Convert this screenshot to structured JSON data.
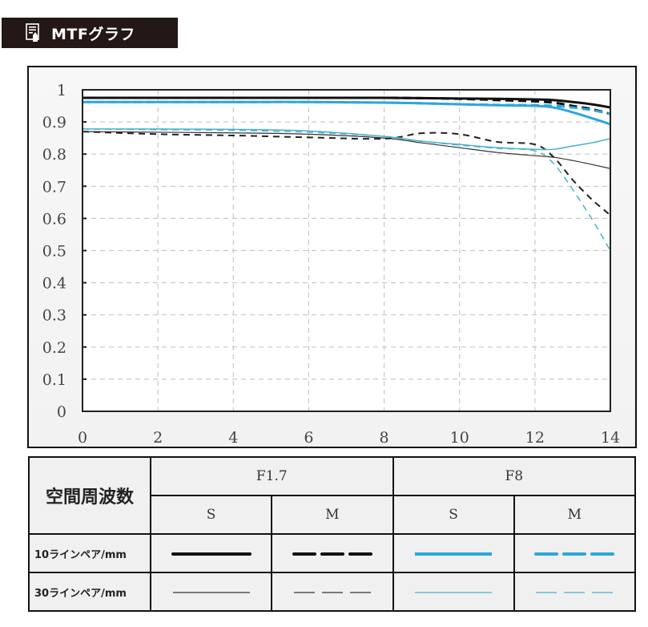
{
  "header": {
    "title": "MTFグラフ",
    "icon": "manual-page-pencil-icon"
  },
  "chart_data": {
    "type": "line",
    "title": "MTFグラフ",
    "xlabel": "",
    "ylabel": "",
    "xlim": [
      0,
      14
    ],
    "ylim": [
      0,
      1
    ],
    "x_ticks": [
      "0",
      "2",
      "4",
      "6",
      "8",
      "10",
      "12",
      "14"
    ],
    "y_ticks": [
      "0",
      "0.1",
      "0.2",
      "0.3",
      "0.4",
      "0.5",
      "0.6",
      "0.7",
      "0.8",
      "0.9",
      "1"
    ],
    "grid": true,
    "x": [
      0,
      2,
      4,
      6,
      8,
      9,
      10,
      11,
      12,
      12.5,
      13,
      13.5,
      14
    ],
    "series": [
      {
        "name": "10ラインペア/mm F1.7 S",
        "color": "#111111",
        "width": 3,
        "dash": "",
        "values": [
          0.975,
          0.975,
          0.975,
          0.975,
          0.975,
          0.974,
          0.973,
          0.972,
          0.97,
          0.968,
          0.962,
          0.955,
          0.945
        ]
      },
      {
        "name": "10ラインペア/mm F1.7 M",
        "color": "#111111",
        "width": 3,
        "dash": "10,6",
        "values": [
          0.975,
          0.975,
          0.975,
          0.975,
          0.975,
          0.974,
          0.972,
          0.968,
          0.964,
          0.96,
          0.95,
          0.94,
          0.925
        ]
      },
      {
        "name": "10ラインペア/mm F8 S",
        "color": "#2aa7dc",
        "width": 3,
        "dash": "",
        "values": [
          0.962,
          0.962,
          0.962,
          0.962,
          0.96,
          0.958,
          0.955,
          0.952,
          0.95,
          0.945,
          0.93,
          0.912,
          0.893
        ]
      },
      {
        "name": "10ラインペア/mm F8 M",
        "color": "#2aa7dc",
        "width": 3,
        "dash": "10,6",
        "values": [
          0.962,
          0.962,
          0.962,
          0.962,
          0.96,
          0.958,
          0.955,
          0.953,
          0.952,
          0.95,
          0.945,
          0.937,
          0.925
        ]
      },
      {
        "name": "30ラインペア/mm F1.7 S",
        "color": "#333333",
        "width": 1.2,
        "dash": "",
        "values": [
          0.87,
          0.868,
          0.866,
          0.862,
          0.85,
          0.835,
          0.82,
          0.805,
          0.795,
          0.79,
          0.78,
          0.768,
          0.755
        ]
      },
      {
        "name": "30ラインペア/mm F1.7 M",
        "color": "#222222",
        "width": 2,
        "dash": "8,6",
        "values": [
          0.87,
          0.862,
          0.858,
          0.852,
          0.848,
          0.865,
          0.862,
          0.838,
          0.83,
          0.79,
          0.72,
          0.66,
          0.61
        ]
      },
      {
        "name": "30ラインペア/mm F8 S",
        "color": "#4ab0d0",
        "width": 1.5,
        "dash": "",
        "values": [
          0.878,
          0.878,
          0.877,
          0.872,
          0.855,
          0.84,
          0.83,
          0.82,
          0.815,
          0.815,
          0.825,
          0.835,
          0.848
        ]
      },
      {
        "name": "30ラインペア/mm F8 M",
        "color": "#4ab0d0",
        "width": 1.5,
        "dash": "8,6",
        "values": [
          0.878,
          0.876,
          0.874,
          0.868,
          0.855,
          0.84,
          0.828,
          0.818,
          0.81,
          0.77,
          0.69,
          0.6,
          0.5
        ]
      }
    ]
  },
  "legend_table": {
    "header_label": "空間周波数",
    "apertures": [
      "F1.7",
      "F8"
    ],
    "positions": [
      "S",
      "M",
      "S",
      "M"
    ],
    "rows": [
      {
        "label": "10ラインペア/mm"
      },
      {
        "label": "30ラインペア/mm"
      }
    ]
  }
}
